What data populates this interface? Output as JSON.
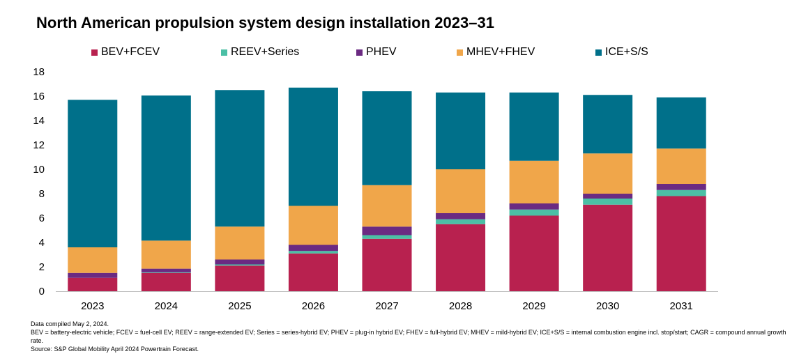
{
  "chart_data": {
    "type": "bar",
    "stacked": true,
    "title": "North American propulsion system design installation 2023–31",
    "xlabel": "",
    "ylabel": "",
    "ylim": [
      0,
      18
    ],
    "yticks": [
      0,
      2,
      4,
      6,
      8,
      10,
      12,
      14,
      16,
      18
    ],
    "categories": [
      "2023",
      "2024",
      "2025",
      "2026",
      "2027",
      "2028",
      "2029",
      "2030",
      "2031"
    ],
    "series": [
      {
        "name": "BEV+FCEV",
        "color": "#b8214f",
        "values": [
          1.1,
          1.5,
          2.1,
          3.1,
          4.3,
          5.5,
          6.2,
          7.1,
          7.8
        ]
      },
      {
        "name": "REEV+Series",
        "color": "#4bbfa5",
        "values": [
          0.0,
          0.05,
          0.1,
          0.2,
          0.3,
          0.4,
          0.5,
          0.5,
          0.5
        ]
      },
      {
        "name": "PHEV",
        "color": "#6b2a82",
        "values": [
          0.4,
          0.3,
          0.4,
          0.5,
          0.7,
          0.5,
          0.5,
          0.4,
          0.5
        ]
      },
      {
        "name": "MHEV+FHEV",
        "color": "#f0a64a",
        "values": [
          2.1,
          2.3,
          2.7,
          3.2,
          3.4,
          3.6,
          3.5,
          3.3,
          2.9
        ]
      },
      {
        "name": "ICE+S/S",
        "color": "#00708a",
        "values": [
          12.1,
          11.9,
          11.2,
          9.7,
          7.7,
          6.3,
          5.6,
          4.8,
          4.2
        ]
      }
    ],
    "legend_position": "top",
    "grid": false
  },
  "footer": {
    "line1": "Data compiled May 2, 2024.",
    "line2": "BEV = battery-electric vehicle; FCEV = fuel-cell EV; REEV = range-extended EV; Series = series-hybrid EV; PHEV = plug-in hybrid EV; FHEV = full-hybrid EV; MHEV = mild-hybrid EV; ICE+S/S = internal combustion engine incl. stop/start; CAGR = compound annual growth rate.",
    "line3": "Source: S&P Global Mobility April 2024 Powertrain Forecast."
  }
}
